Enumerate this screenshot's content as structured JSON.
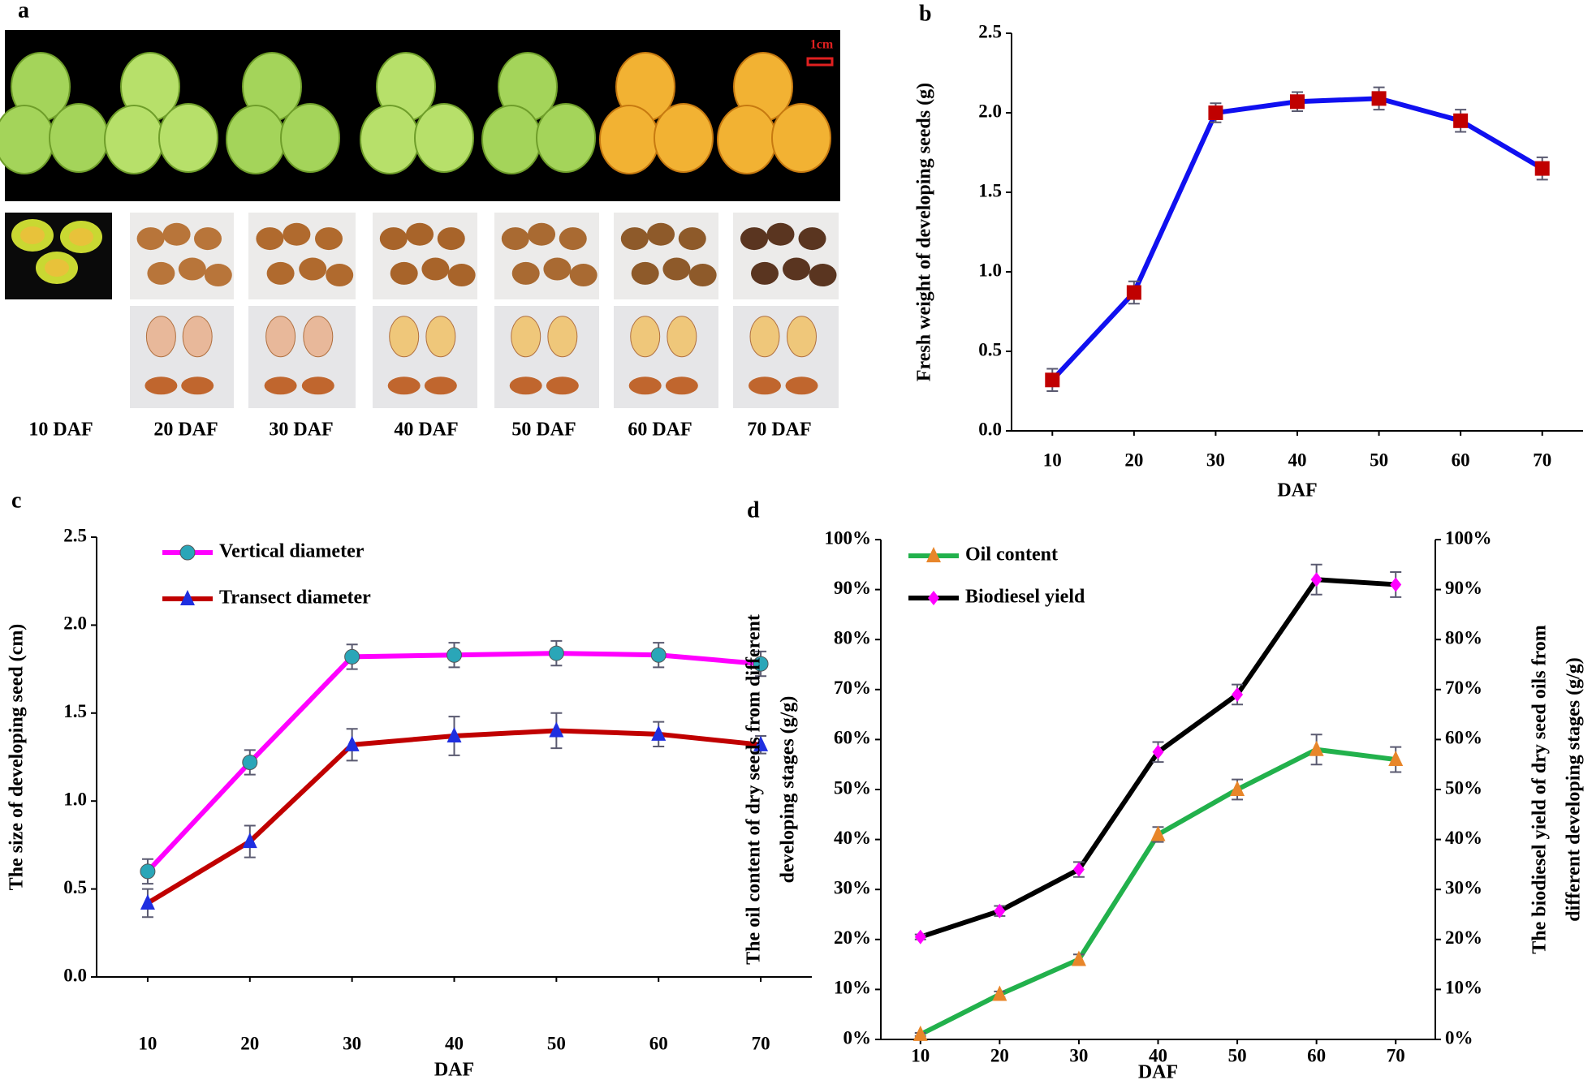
{
  "panel_labels": [
    "a",
    "b",
    "c",
    "d"
  ],
  "photo_panel": {
    "scale_bar": "1cm",
    "stage_labels": [
      "10 DAF",
      "20 DAF",
      "30 DAF",
      "40 DAF",
      "50 DAF",
      "60 DAF",
      "70 DAF"
    ]
  },
  "chart_data": [
    {
      "type": "line",
      "xlabel": "DAF",
      "ylabel": [
        "Fresh weight of developing seeds (g)"
      ],
      "categories": [
        "10",
        "20",
        "30",
        "40",
        "50",
        "60",
        "70"
      ],
      "series": [
        {
          "color": "#1010f0",
          "marker": "square",
          "marker_color": "#c00000",
          "values": [
            0.32,
            0.87,
            2.0,
            2.07,
            2.09,
            1.95,
            1.65
          ],
          "errors": [
            0.07,
            0.07,
            0.06,
            0.06,
            0.07,
            0.07,
            0.07
          ]
        }
      ],
      "ylim": [
        0,
        2.5
      ],
      "yticks": [
        {
          "value": 0,
          "label": "0.0"
        },
        0.5,
        {
          "value": 1,
          "label": "1.0"
        },
        1.5,
        {
          "value": 2,
          "label": "2.0"
        },
        2.5
      ]
    },
    {
      "type": "line",
      "xlabel": "DAF",
      "ylabel": [
        "The size of developing seed (cm)"
      ],
      "categories": [
        "10",
        "20",
        "30",
        "40",
        "50",
        "60",
        "70"
      ],
      "series": [
        {
          "name": "Vertical diameter",
          "color": "#ff00ff",
          "marker": "circle",
          "marker_color": "#2aa6b8",
          "values": [
            0.6,
            1.22,
            1.82,
            1.83,
            1.84,
            1.83,
            1.78
          ],
          "errors": [
            0.07,
            0.07,
            0.07,
            0.07,
            0.07,
            0.07,
            0.07
          ]
        },
        {
          "name": "Transect diameter",
          "color": "#c00000",
          "marker": "triangle",
          "marker_color": "#1f2fe0",
          "values": [
            0.42,
            0.77,
            1.32,
            1.37,
            1.4,
            1.38,
            1.32
          ],
          "errors": [
            0.08,
            0.09,
            0.09,
            0.11,
            0.1,
            0.07,
            0.05
          ]
        }
      ],
      "legend": "upper left",
      "ylim": [
        0,
        2.5
      ],
      "yticks": [
        {
          "value": 0,
          "label": "0.0"
        },
        0.5,
        {
          "value": 1,
          "label": "1.0"
        },
        1.5,
        {
          "value": 2,
          "label": "2.0"
        },
        2.5
      ]
    },
    {
      "type": "line",
      "xlabel": "DAF",
      "ylabel": [
        "The oil content of dry seeds from different",
        "developing stages (g/g)"
      ],
      "y2label": [
        "The biodiesel yield of dry seed oils from",
        "different developing stages (g/g)"
      ],
      "categories": [
        "10",
        "20",
        "30",
        "40",
        "50",
        "60",
        "70"
      ],
      "series": [
        {
          "name": "Oil content",
          "color": "#22b14c",
          "marker": "triangle",
          "marker_color": "#e8862a",
          "values": [
            1,
            9,
            16,
            41,
            50,
            58,
            56
          ],
          "errors": [
            0.3,
            0.6,
            1,
            1.5,
            2,
            3,
            2.5
          ]
        },
        {
          "name": "Biodiesel yield",
          "color": "#000000",
          "marker": "diamond",
          "marker_color": "#ff00ff",
          "axis": "y2",
          "values": [
            20.5,
            25.7,
            34,
            57.5,
            69,
            92,
            91
          ],
          "errors": [
            0.5,
            1,
            1.5,
            2,
            2,
            3,
            2.5
          ]
        }
      ],
      "legend": "upper left",
      "ylim": [
        0,
        100
      ],
      "yticks": [
        {
          "value": 0,
          "label": "0%"
        },
        {
          "value": 10,
          "label": "10%"
        },
        {
          "value": 20,
          "label": "20%"
        },
        {
          "value": 30,
          "label": "30%"
        },
        {
          "value": 40,
          "label": "40%"
        },
        {
          "value": 50,
          "label": "50%"
        },
        {
          "value": 60,
          "label": "60%"
        },
        {
          "value": 70,
          "label": "70%"
        },
        {
          "value": 80,
          "label": "80%"
        },
        {
          "value": 90,
          "label": "90%"
        },
        {
          "value": 100,
          "label": "100%"
        }
      ],
      "y2lim": [
        0,
        100
      ],
      "y2ticks": [
        {
          "value": 0,
          "label": "0%"
        },
        {
          "value": 10,
          "label": "10%"
        },
        {
          "value": 20,
          "label": "20%"
        },
        {
          "value": 30,
          "label": "30%"
        },
        {
          "value": 40,
          "label": "40%"
        },
        {
          "value": 50,
          "label": "50%"
        },
        {
          "value": 60,
          "label": "60%"
        },
        {
          "value": 70,
          "label": "70%"
        },
        {
          "value": 80,
          "label": "80%"
        },
        {
          "value": 90,
          "label": "90%"
        },
        {
          "value": 100,
          "label": "100%"
        }
      ]
    }
  ]
}
